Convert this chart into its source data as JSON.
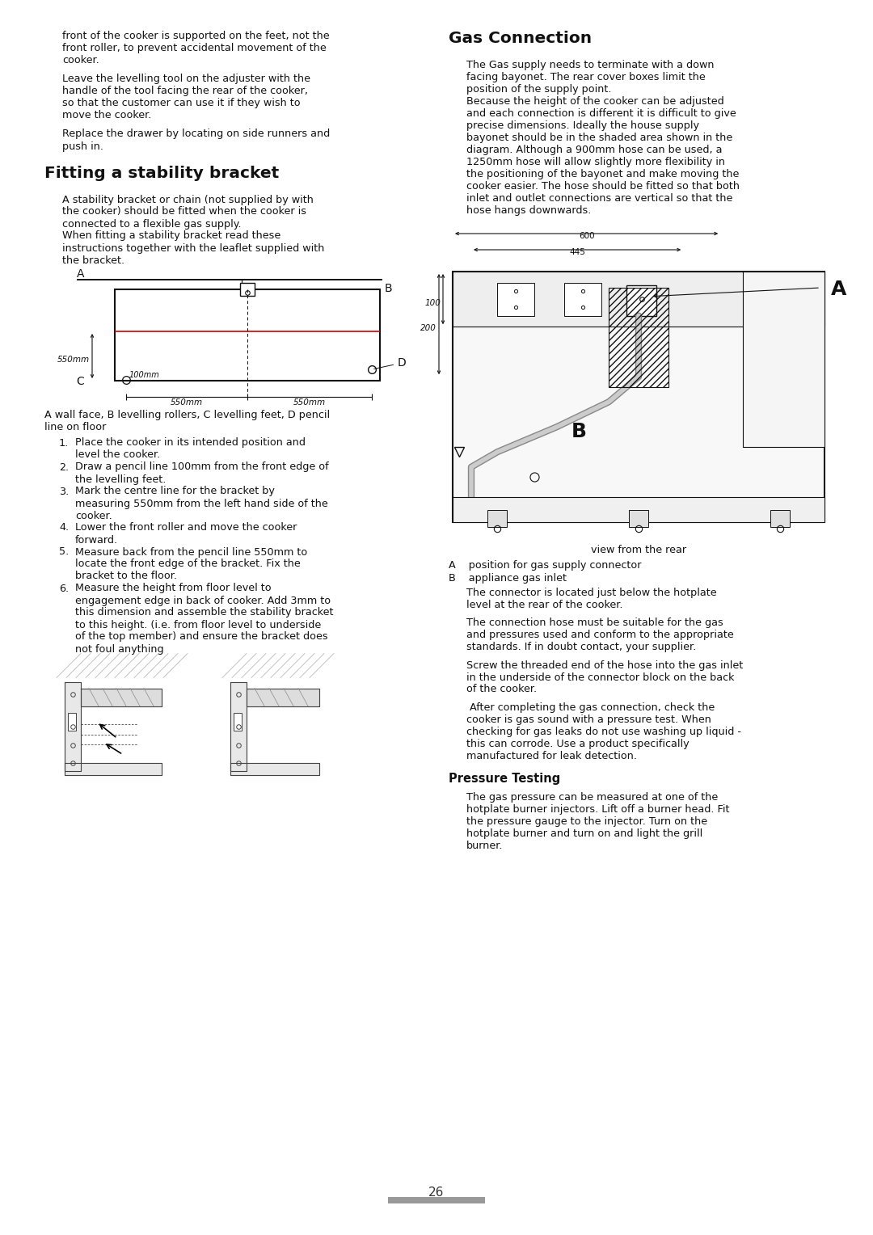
{
  "bg": "#ffffff",
  "tc": "#111111",
  "page_num": "26",
  "left_top_lines": [
    "front of the cooker is supported on the feet, not the",
    "front roller, to prevent accidental movement of the",
    "cooker.",
    "",
    "Leave the levelling tool on the adjuster with the",
    "handle of the tool facing the rear of the cooker,",
    "so that the customer can use it if they wish to",
    "move the cooker.",
    "",
    "Replace the drawer by locating on side runners and",
    "push in."
  ],
  "s1_title": "Fitting a stability bracket",
  "s1_body": [
    "A stability bracket or chain (not supplied by with",
    "the cooker) should be fitted when the cooker is",
    "connected to a flexible gas supply.",
    "When fitting a stability bracket read these",
    "instructions together with the leaflet supplied with",
    "the bracket."
  ],
  "s1_caption": "A wall face, B levelling rollers, C levelling feet, D pencil\nline on floor",
  "s1_list": [
    [
      "1.",
      "Place the cooker in its intended position and\nlevel the cooker."
    ],
    [
      "2.",
      "Draw a pencil line 100mm from the front edge of\nthe levelling feet."
    ],
    [
      "3.",
      "Mark the centre line for the bracket by\nmeasuring 550mm from the left hand side of the\ncooker."
    ],
    [
      "4.",
      "Lower the front roller and move the cooker\nforward."
    ],
    [
      "5.",
      "Measure back from the pencil line 550mm to\nlocate the front edge of the bracket. Fix the\nbracket to the floor."
    ],
    [
      "6.",
      "Measure the height from floor level to\nengagement edge in back of cooker. Add 3mm to\nthis dimension and assemble the stability bracket\nto this height. (i.e. from floor level to underside\nof the top member) and ensure the bracket does\nnot foul anything"
    ]
  ],
  "s2_title": "Gas Connection",
  "s2_body1": [
    "The Gas supply needs to terminate with a down",
    "facing bayonet. The rear cover boxes limit the",
    "position of the supply point.",
    "Because the height of the cooker can be adjusted",
    "and each connection is different it is difficult to give",
    "precise dimensions. Ideally the house supply",
    "bayonet should be in the shaded area shown in the",
    "diagram. Although a 900mm hose can be used, a",
    "1250mm hose will allow slightly more flexibility in",
    "the positioning of the bayonet and make moving the",
    "cooker easier. The hose should be fitted so that both",
    "inlet and outlet connections are vertical so that the",
    "hose hangs downwards."
  ],
  "s2_cap": [
    "view from the rear",
    "A    position for gas supply connector",
    "B    appliance gas inlet"
  ],
  "s2_body2": [
    "The connector is located just below the hotplate",
    "level at the rear of the cooker.",
    "",
    "The connection hose must be suitable for the gas",
    "and pressures used and conform to the appropriate",
    "standards. If in doubt contact, your supplier.",
    "",
    "Screw the threaded end of the hose into the gas inlet",
    "in the underside of the connector block on the back",
    "of the cooker.",
    "",
    " After completing the gas connection, check the",
    "cooker is gas sound with a pressure test. When",
    "checking for gas leaks do not use washing up liquid -",
    "this can corrode. Use a product specifically",
    "manufactured for leak detection."
  ],
  "s3_title": "Pressure Testing",
  "s3_body": [
    "The gas pressure can be measured at one of the",
    "hotplate burner injectors. Lift off a burner head. Fit",
    "the pressure gauge to the injector. Turn on the",
    "hotplate burner and turn on and light the grill",
    "burner."
  ]
}
